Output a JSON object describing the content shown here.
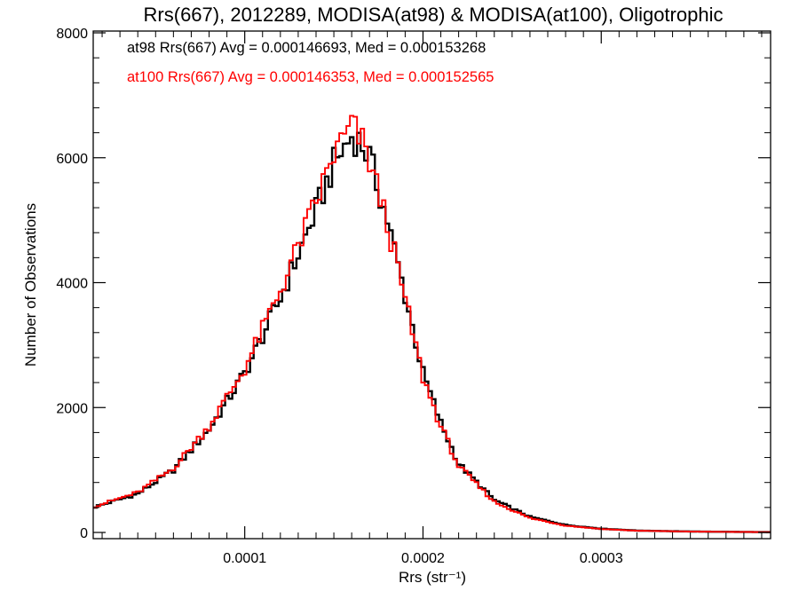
{
  "chart_data": {
    "type": "line",
    "title": "Rrs(667), 2012289, MODISA(at98) & MODISA(at100), Oligotrophic",
    "xlabel": "Rrs (str⁻¹)",
    "ylabel": "Number of Observations",
    "xlim": [
      1.5e-05,
      0.000395
    ],
    "ylim": [
      0,
      8000
    ],
    "x_ticks": [
      0.0001,
      0.0002,
      0.0003
    ],
    "x_tick_labels": [
      "0.0001",
      "0.0002",
      "0.0003"
    ],
    "y_ticks": [
      0,
      2000,
      4000,
      6000,
      8000
    ],
    "y_tick_labels": [
      "0",
      "2000",
      "4000",
      "6000",
      "8000"
    ],
    "grid": false,
    "series": [
      {
        "name": "at98",
        "color": "#000000",
        "stat_text": "at98 Rrs(667) Avg = 0.000146693, Med = 0.000153268"
      },
      {
        "name": "at100",
        "color": "#ff0000",
        "stat_text": "at100 Rrs(667) Avg = 0.000146353, Med = 0.000152565"
      }
    ],
    "curve_points": {
      "x": [
        1.5e-05,
        4e-05,
        6e-05,
        8e-05,
        0.0001,
        0.00012,
        0.00014,
        0.00015,
        0.00016,
        0.000165,
        0.00017,
        0.00018,
        0.00019,
        0.0002,
        0.00021,
        0.00022,
        0.00024,
        0.00026,
        0.00028,
        0.0003,
        0.00032,
        0.00035,
        0.000395
      ],
      "at98": [
        400,
        620,
        1000,
        1650,
        2550,
        3750,
        5150,
        5900,
        6350,
        6250,
        6000,
        5000,
        3800,
        2550,
        1750,
        1100,
        520,
        250,
        120,
        60,
        30,
        15,
        5
      ],
      "at100": [
        410,
        640,
        1030,
        1700,
        2620,
        3880,
        5280,
        6050,
        6500,
        6300,
        5950,
        4950,
        3720,
        2480,
        1700,
        1060,
        490,
        230,
        110,
        55,
        28,
        14,
        5
      ]
    }
  }
}
